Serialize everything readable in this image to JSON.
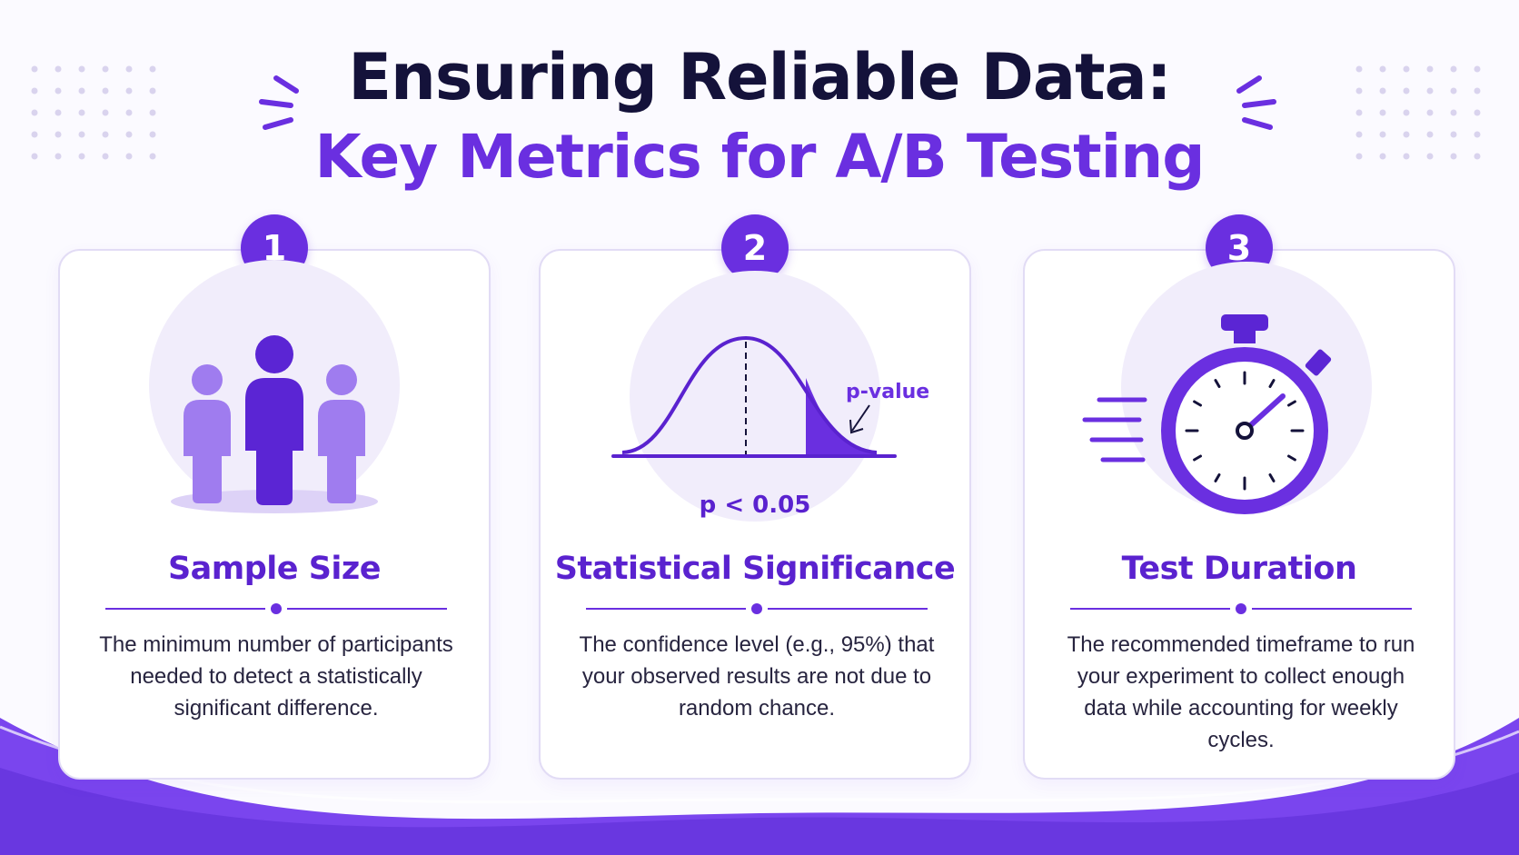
{
  "header": {
    "title_line1": "Ensuring Reliable Data:",
    "title_line2": "Key Metrics for A/B Testing"
  },
  "colors": {
    "accent": "#6a2fe0",
    "title_dark": "#14123a",
    "card_border": "#e2dcf5",
    "soft_circle": "#f1edfb",
    "wave": "#7a45ee"
  },
  "cards": [
    {
      "number": "1",
      "icon": "people-group-icon",
      "title": "Sample Size",
      "description": "The minimum number of participants needed to detect a statistically significant difference."
    },
    {
      "number": "2",
      "icon": "bell-curve-icon",
      "title": "Statistical Significance",
      "description": "The confidence level (e.g., 95%) that your observed results are not due to random chance.",
      "chart_labels": {
        "tail_label": "p-value",
        "threshold": "p < 0.05"
      }
    },
    {
      "number": "3",
      "icon": "stopwatch-icon",
      "title": "Test Duration",
      "description": "The recommended timeframe to run your experiment to collect enough data while accounting for weekly cycles."
    }
  ]
}
